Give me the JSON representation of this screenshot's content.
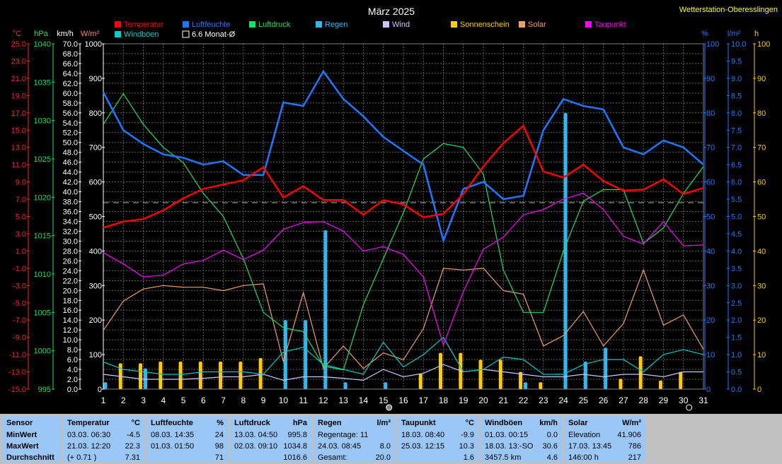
{
  "title": "März 2025",
  "station": "Wetterstation-Oberesslingen",
  "legend": [
    {
      "label": "Temperatur",
      "color": "#ff0000"
    },
    {
      "label": "Luftfeuchte",
      "color": "#1e78ff"
    },
    {
      "label": "Luftdruck",
      "color": "#18e060"
    },
    {
      "label": "Regen",
      "color": "#30b8f0"
    },
    {
      "label": "Wind",
      "color": "#c8c8ff"
    },
    {
      "label": "Sonnenschein",
      "color": "#ffcc00"
    },
    {
      "label": "Solar",
      "color": "#f0a060"
    },
    {
      "label": "Taupunkt",
      "color": "#ff00ff"
    },
    {
      "label": "Windböen",
      "color": "#00cccc"
    },
    {
      "label": "6.6 Monat-Ø",
      "color": "#000000"
    }
  ],
  "axis_units": {
    "temp": "°C",
    "press": "hPa",
    "wind": "km/h",
    "solar": "W/m²",
    "hum": "%",
    "rain": "l/m²",
    "sun": "h"
  },
  "axes": {
    "temp_ticks": [
      "25.0",
      "23.0",
      "21.0",
      "19.0",
      "17.0",
      "15.0",
      "13.0",
      "11.0",
      "9.0",
      "7.0",
      "5.0",
      "3.0",
      "1.0",
      "-1.0",
      "-3.0",
      "-5.0",
      "-7.0",
      "-9.0",
      "-11.0",
      "-13.0",
      "-15.0"
    ],
    "press_ticks": [
      "1040",
      "1035",
      "1030",
      "1025",
      "1020",
      "1015",
      "1010",
      "1005",
      "1000",
      "995"
    ],
    "wind_ticks": [
      "70.0",
      "68.0",
      "66.0",
      "64.0",
      "62.0",
      "60.0",
      "58.0",
      "56.0",
      "54.0",
      "52.0",
      "50.0",
      "48.0",
      "46.0",
      "44.0",
      "42.0",
      "40.0",
      "38.0",
      "36.0",
      "34.0",
      "32.0",
      "30.0",
      "28.0",
      "26.0",
      "24.0",
      "22.0",
      "20.0",
      "18.0",
      "16.0",
      "14.0",
      "12.0",
      "10.0",
      "8.0",
      "6.0",
      "4.0",
      "2.0",
      "0.0"
    ],
    "solar_ticks": [
      "1000",
      "900",
      "800",
      "700",
      "600",
      "500",
      "400",
      "300",
      "200",
      "100",
      "0"
    ],
    "hum_ticks": [
      "100",
      "90",
      "80",
      "70",
      "60",
      "50",
      "40",
      "30",
      "20",
      "10",
      "0"
    ],
    "rain_ticks": [
      "10.0",
      "9.5",
      "9.0",
      "8.5",
      "8.0",
      "7.5",
      "7.0",
      "6.5",
      "6.0",
      "5.5",
      "5.0",
      "4.5",
      "4.0",
      "3.5",
      "3.0",
      "2.5",
      "2.0",
      "1.5",
      "1.0",
      "0.5",
      "0.0"
    ],
    "sun_ticks": [
      "100",
      "90",
      "80",
      "70",
      "60",
      "50",
      "40",
      "30",
      "20",
      "10",
      "0"
    ]
  },
  "chart_data": {
    "type": "line",
    "x": [
      1,
      2,
      3,
      4,
      5,
      6,
      7,
      8,
      9,
      10,
      11,
      12,
      13,
      14,
      15,
      16,
      17,
      18,
      19,
      20,
      21,
      22,
      23,
      24,
      25,
      26,
      27,
      28,
      29,
      30,
      31
    ],
    "temp_range": [
      -15,
      25
    ],
    "monthly_avg_temp": 6.6,
    "moon_days": [
      15,
      30
    ],
    "series": [
      {
        "name": "Temperatur",
        "axis": "temp",
        "values": [
          3.7,
          4.4,
          4.7,
          5.7,
          7.1,
          8.2,
          8.7,
          9.2,
          10.7,
          7.2,
          8.5,
          6.9,
          6.9,
          5.2,
          6.9,
          6.4,
          4.9,
          5.3,
          7.6,
          10.8,
          13.5,
          15.5,
          10.2,
          9.5,
          11.0,
          9.1,
          8.0,
          8.1,
          9.3,
          7.6,
          8.3
        ]
      },
      {
        "name": "Luftfeuchte",
        "axis": "hum",
        "values": [
          86,
          75,
          71,
          68,
          67,
          65,
          66,
          62,
          62,
          83,
          82,
          92,
          84,
          79,
          73,
          69,
          65,
          43,
          58,
          60,
          55,
          56,
          75,
          84,
          82,
          81,
          70,
          68,
          72,
          70,
          65
        ]
      },
      {
        "name": "Luftdruck",
        "axis": "press",
        "values": [
          1029.5,
          1033.5,
          1029.5,
          1026.5,
          1024.5,
          1020.5,
          1017.5,
          1012.0,
          1005.0,
          1003.0,
          1002.5,
          998.0,
          997.5,
          1006.0,
          1012.0,
          1018.0,
          1025.0,
          1027.0,
          1026.5,
          1023.0,
          1010.5,
          1005.0,
          1005.0,
          1013.0,
          1019.5,
          1021.0,
          1021.0,
          1014.0,
          1016.0,
          1020.5,
          1024.0
        ]
      },
      {
        "name": "Taupunkt",
        "axis": "temp",
        "values": [
          0.8,
          -0.5,
          -2.0,
          -1.8,
          -0.5,
          -0.1,
          1.1,
          0.0,
          1.1,
          3.5,
          4.3,
          4.4,
          3.3,
          1.0,
          1.5,
          0.6,
          -2.0,
          -9.9,
          -3.7,
          1.2,
          2.6,
          5.2,
          5.8,
          7.0,
          7.7,
          5.8,
          2.7,
          1.8,
          4.4,
          1.6,
          1.7
        ]
      },
      {
        "name": "Solar",
        "axis": "solar",
        "values": [
          170,
          255,
          290,
          300,
          295,
          295,
          285,
          300,
          305,
          80,
          280,
          60,
          125,
          60,
          105,
          85,
          175,
          350,
          345,
          350,
          285,
          275,
          125,
          155,
          225,
          125,
          190,
          345,
          185,
          215,
          115
        ]
      },
      {
        "name": "Wind",
        "axis": "wind",
        "values": [
          3.0,
          2.5,
          2.0,
          2.0,
          2.0,
          2.2,
          2.5,
          2.5,
          3.0,
          1.8,
          2.5,
          2.5,
          2.2,
          1.8,
          4.0,
          2.5,
          3.2,
          5.0,
          3.5,
          4.0,
          3.5,
          3.0,
          2.5,
          2.5,
          3.0,
          2.5,
          3.0,
          3.0,
          2.5,
          3.5,
          3.5
        ]
      },
      {
        "name": "Windböen",
        "axis": "wind",
        "values": [
          5.5,
          4.0,
          3.5,
          3.0,
          3.0,
          3.5,
          3.5,
          3.5,
          3.0,
          7.5,
          8.5,
          5.0,
          4.0,
          3.0,
          9.5,
          4.5,
          7.0,
          10.5,
          3.5,
          4.0,
          6.5,
          6.0,
          3.0,
          3.0,
          5.0,
          6.0,
          6.0,
          3.5,
          7.0,
          8.0,
          7.0
        ]
      }
    ],
    "bars": [
      {
        "name": "Regen",
        "axis": "rain",
        "values": [
          0.2,
          0,
          0.6,
          0,
          0,
          0,
          0,
          0,
          0,
          2.0,
          2.0,
          4.6,
          0.2,
          0,
          0.2,
          0,
          0,
          0,
          0,
          0,
          0,
          0.2,
          0,
          8.0,
          0.8,
          1.2,
          0,
          0,
          0,
          0,
          0
        ]
      },
      {
        "name": "Sonnenschein",
        "axis": "sun",
        "values": [
          0,
          7.5,
          7.5,
          8,
          8,
          8,
          8,
          8,
          9,
          0,
          0,
          0,
          0,
          0,
          0,
          0,
          4.5,
          10.5,
          10.5,
          8.5,
          8.5,
          5,
          2,
          0,
          0,
          0,
          3,
          9.5,
          2.5,
          5,
          0
        ]
      }
    ]
  },
  "stats": {
    "sensor": {
      "h": "Sensor",
      "rows": [
        "MinWert",
        "MaxWert",
        "Durchschnitt"
      ]
    },
    "temp": {
      "h": "Temperatur",
      "u": "°C",
      "r": [
        [
          "03.03.  06:30",
          "-4.5"
        ],
        [
          "21.03.  12:20",
          "22.3"
        ],
        [
          "(+ 0.71 )",
          "7.31"
        ]
      ]
    },
    "hum": {
      "h": "Luftfeuchte",
      "u": "%",
      "r": [
        [
          "08.03.  14:35",
          "24"
        ],
        [
          "01.03.  01:50",
          "98"
        ],
        [
          "",
          "71"
        ]
      ]
    },
    "press": {
      "h": "Luftdruck",
      "u": "hPa",
      "r": [
        [
          "13.03.  04:50",
          "995.8"
        ],
        [
          "02.03.  09:10",
          "1034.8"
        ],
        [
          "",
          "1016.6"
        ]
      ]
    },
    "rain": {
      "h": "Regen",
      "u": "l/m²",
      "r": [
        [
          "Regentage: 11",
          ""
        ],
        [
          "24.03.  08:45",
          "8.0"
        ],
        [
          "Gesamt:",
          "20.0"
        ]
      ]
    },
    "dew": {
      "h": "Taupunkt",
      "u": "°C",
      "r": [
        [
          "18.03.  08:40",
          "-9.9"
        ],
        [
          "25.03.  12:15",
          "10.3"
        ],
        [
          "",
          "1.6"
        ]
      ]
    },
    "wind": {
      "h": "Windböen",
      "u": "km/h",
      "r": [
        [
          "01.03.  00:15",
          "0.0"
        ],
        [
          "18.03.  13:-SO",
          "30.6"
        ],
        [
          "3457.5 km",
          "4.6"
        ]
      ]
    },
    "solar": {
      "h": "Solar",
      "u": "W/m²",
      "r": [
        [
          "Elevation",
          "41.906"
        ],
        [
          "17.03.  13:45",
          "786"
        ],
        [
          "146:00 h",
          "217"
        ]
      ]
    }
  }
}
